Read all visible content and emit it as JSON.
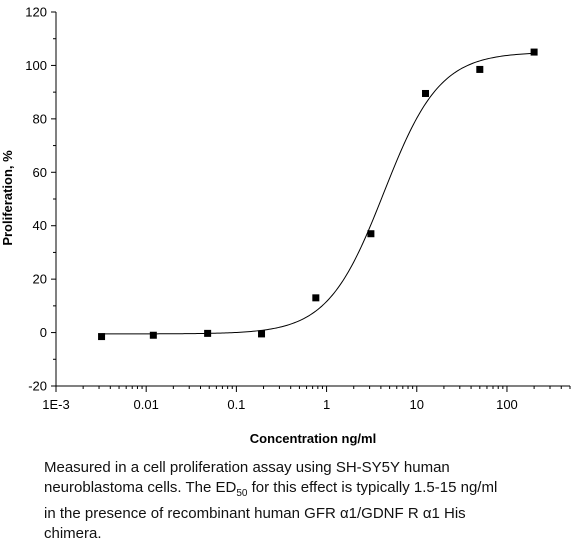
{
  "chart_data": {
    "type": "scatter",
    "title": "",
    "xlabel": "Concentration ng/ml",
    "ylabel": "Proliferation, %",
    "xscale": "log",
    "xlim": [
      0.001,
      500
    ],
    "ylim": [
      -20,
      120
    ],
    "xticks": [
      0.001,
      0.01,
      0.1,
      1,
      10,
      100
    ],
    "xtick_labels": [
      "1E-3",
      "0.01",
      "0.1",
      "1",
      "10",
      "100"
    ],
    "yticks": [
      -20,
      0,
      20,
      40,
      60,
      80,
      100,
      120
    ],
    "ytick_labels": [
      "-20",
      "0",
      "20",
      "40",
      "60",
      "80",
      "100",
      "120"
    ],
    "grid": false,
    "series": [
      {
        "marker": "square",
        "color": "#000000",
        "x": [
          0.0032,
          0.012,
          0.048,
          0.19,
          0.76,
          3.1,
          12.5,
          50,
          200
        ],
        "y": [
          -1.5,
          -1,
          -0.3,
          -0.5,
          13,
          37,
          89.5,
          98.5,
          105
        ]
      }
    ],
    "fit_curve": {
      "model": "4PL",
      "bottom": -0.5,
      "top": 105,
      "ec50": 4.3,
      "hill": 1.4,
      "color": "#000000"
    }
  },
  "caption": {
    "line1": "Measured in a cell proliferation assay using SH-SY5Y human",
    "line2_pre": "neuroblastoma cells. The ED",
    "line2_sub": "50",
    "line2_post": " for this effect is typically 1.5-15 ng/ml",
    "line3": "in the presence of recombinant human GFR α1/GDNF R α1 His",
    "line4": "chimera."
  }
}
